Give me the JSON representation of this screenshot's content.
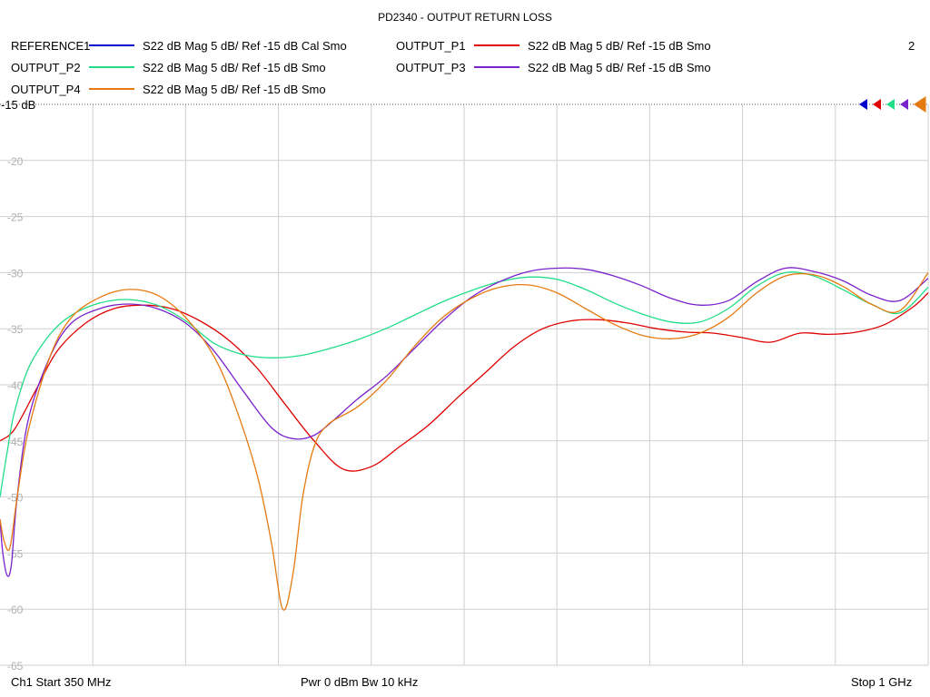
{
  "title": "PD2340 - OUTPUT RETURN LOSS",
  "channel_number": "2",
  "footer": {
    "start": "Ch1  Start  350 MHz",
    "power": "Pwr  0 dBm  Bw  10 kHz",
    "stop": "Stop  1 GHz"
  },
  "ref_label": "-15 dB",
  "legend": [
    {
      "name": "REFERENCE1",
      "desc": "S22  dB Mag  5 dB/ Ref -15 dB  Cal Smo",
      "color": "#0000cc"
    },
    {
      "name": "OUTPUT_P1",
      "desc": "S22  dB Mag  5 dB/ Ref -15 dB  Smo",
      "color": "#e00000"
    },
    {
      "name": "OUTPUT_P2",
      "desc": "S22  dB Mag  5 dB/ Ref -15 dB  Smo",
      "color": "#22dd88"
    },
    {
      "name": "OUTPUT_P3",
      "desc": "S22  dB Mag  5 dB/ Ref -15 dB  Smo",
      "color": "#7a22cc"
    },
    {
      "name": "OUTPUT_P4",
      "desc": "S22  dB Mag  5 dB/ Ref -15 dB  Smo",
      "color": "#e57a10"
    }
  ],
  "chart_data": {
    "type": "line",
    "title": "PD2340 - OUTPUT RETURN LOSS",
    "xlabel": "",
    "ylabel": "",
    "xlim": [
      350,
      1000
    ],
    "ylim": [
      -65,
      -15
    ],
    "y_ticks": [
      "-15 dB",
      "-20",
      "-25",
      "-30",
      "-35",
      "-40",
      "-45",
      "-50",
      "-55",
      "-60",
      "-65"
    ],
    "grid": true,
    "series": [
      {
        "name": "OUTPUT_P1",
        "color": "#e00000",
        "x": [
          350,
          360,
          375,
          390,
          410,
          430,
          450,
          470,
          490,
          510,
          530,
          550,
          570,
          590,
          610,
          630,
          650,
          670,
          690,
          710,
          730,
          750,
          770,
          790,
          810,
          830,
          850,
          870,
          890,
          910,
          930,
          950,
          970,
          990,
          1000
        ],
        "y": [
          -45,
          -44,
          -40.5,
          -37,
          -34.5,
          -33.2,
          -32.9,
          -33.2,
          -34.3,
          -36,
          -38.5,
          -41.8,
          -45,
          -47.5,
          -47.3,
          -45.5,
          -43.6,
          -41.2,
          -38.9,
          -36.6,
          -35,
          -34.3,
          -34.2,
          -34.5,
          -35,
          -35.3,
          -35.4,
          -35.8,
          -36.2,
          -35.4,
          -35.5,
          -35.3,
          -34.6,
          -33,
          -31.8
        ]
      },
      {
        "name": "OUTPUT_P2",
        "color": "#22dd88",
        "x": [
          350,
          355,
          360,
          370,
          385,
          400,
          420,
          440,
          460,
          480,
          500,
          520,
          540,
          560,
          580,
          600,
          620,
          640,
          660,
          680,
          700,
          720,
          740,
          760,
          780,
          800,
          820,
          840,
          860,
          880,
          900,
          920,
          940,
          960,
          980,
          1000
        ],
        "y": [
          -50,
          -46,
          -42.5,
          -38.5,
          -35.5,
          -33.8,
          -32.7,
          -32.4,
          -32.9,
          -34.3,
          -36.3,
          -37.3,
          -37.6,
          -37.4,
          -36.8,
          -36,
          -35,
          -33.8,
          -32.6,
          -31.6,
          -30.8,
          -30.4,
          -30.6,
          -31.5,
          -32.7,
          -33.7,
          -34.4,
          -34.4,
          -33.2,
          -31.2,
          -30,
          -30.3,
          -31.5,
          -32.8,
          -33.6,
          -31.3
        ]
      },
      {
        "name": "OUTPUT_P3",
        "color": "#7a22cc",
        "x": [
          350,
          352,
          355,
          358,
          362,
          370,
          385,
          400,
          420,
          440,
          460,
          480,
          500,
          520,
          540,
          555,
          570,
          585,
          600,
          620,
          640,
          660,
          680,
          700,
          720,
          740,
          760,
          780,
          800,
          820,
          840,
          860,
          880,
          900,
          920,
          940,
          960,
          980,
          1000
        ],
        "y": [
          -52,
          -55,
          -57,
          -56,
          -50,
          -43,
          -37.5,
          -34.5,
          -33.2,
          -32.8,
          -33.2,
          -34.5,
          -37,
          -40.5,
          -43.8,
          -44.8,
          -44.5,
          -43,
          -41.3,
          -39.3,
          -36.8,
          -34.3,
          -32.2,
          -30.8,
          -29.9,
          -29.6,
          -29.7,
          -30.3,
          -31.2,
          -32.3,
          -32.9,
          -32.5,
          -30.8,
          -29.6,
          -29.9,
          -30.7,
          -32,
          -32.5,
          -30.5
        ]
      },
      {
        "name": "OUTPUT_P4",
        "color": "#e57a10",
        "x": [
          350,
          353,
          357,
          362,
          370,
          385,
          400,
          420,
          440,
          460,
          480,
          500,
          515,
          530,
          540,
          548,
          555,
          562,
          570,
          580,
          600,
          620,
          640,
          660,
          680,
          700,
          720,
          740,
          760,
          780,
          800,
          820,
          840,
          860,
          880,
          900,
          920,
          940,
          960,
          980,
          1000
        ],
        "y": [
          -52,
          -54,
          -54.5,
          -50,
          -44,
          -37.5,
          -34,
          -32.2,
          -31.5,
          -32,
          -34,
          -37.5,
          -42,
          -48,
          -54,
          -60,
          -57,
          -50,
          -45.5,
          -43.5,
          -42,
          -39.7,
          -36.6,
          -34,
          -32.3,
          -31.3,
          -31.1,
          -31.8,
          -33.2,
          -34.6,
          -35.6,
          -35.9,
          -35.4,
          -34,
          -31.8,
          -30.3,
          -30.2,
          -31.2,
          -32.8,
          -33.4,
          -30
        ]
      }
    ]
  }
}
